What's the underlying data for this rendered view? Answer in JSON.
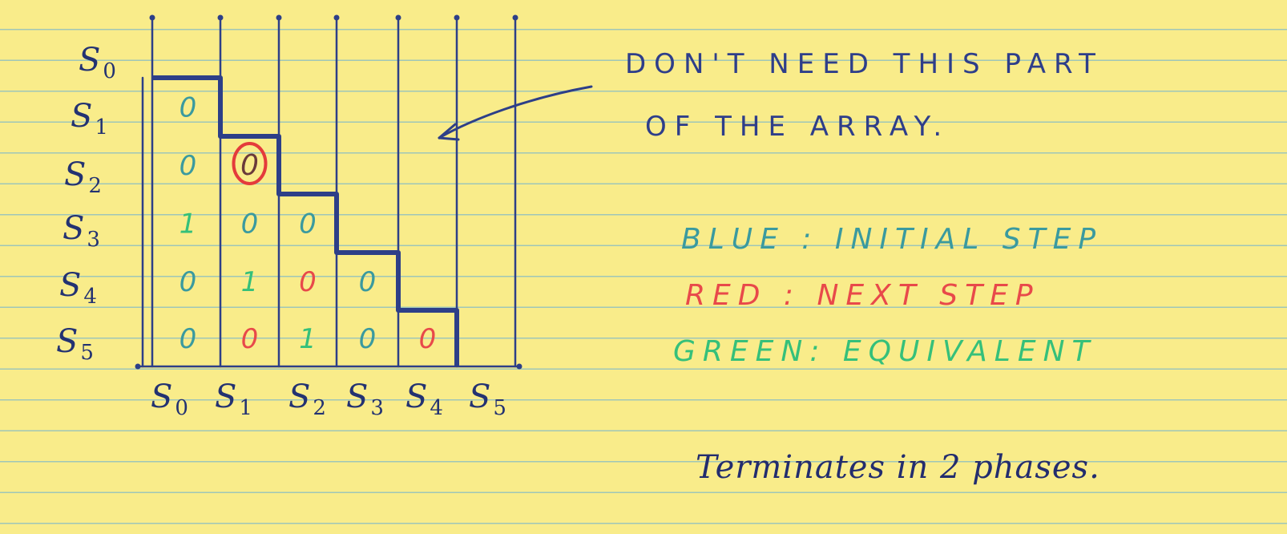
{
  "row_labels": [
    {
      "sym": "S",
      "sub": "0"
    },
    {
      "sym": "S",
      "sub": "1"
    },
    {
      "sym": "S",
      "sub": "2"
    },
    {
      "sym": "S",
      "sub": "3"
    },
    {
      "sym": "S",
      "sub": "4"
    },
    {
      "sym": "S",
      "sub": "5"
    }
  ],
  "col_labels": [
    {
      "sym": "S",
      "sub": "0"
    },
    {
      "sym": "S",
      "sub": "1"
    },
    {
      "sym": "S",
      "sub": "2"
    },
    {
      "sym": "S",
      "sub": "3"
    },
    {
      "sym": "S",
      "sub": "4"
    },
    {
      "sym": "S",
      "sub": "5"
    }
  ],
  "cells": [
    {
      "row": 1,
      "col": 0,
      "value": "0",
      "color": "blue"
    },
    {
      "row": 2,
      "col": 0,
      "value": "0",
      "color": "blue"
    },
    {
      "row": 2,
      "col": 1,
      "value": "0",
      "color": "red",
      "circled": true
    },
    {
      "row": 3,
      "col": 0,
      "value": "1",
      "color": "green"
    },
    {
      "row": 3,
      "col": 1,
      "value": "0",
      "color": "blue"
    },
    {
      "row": 3,
      "col": 2,
      "value": "0",
      "color": "blue"
    },
    {
      "row": 4,
      "col": 0,
      "value": "0",
      "color": "blue"
    },
    {
      "row": 4,
      "col": 1,
      "value": "1",
      "color": "green"
    },
    {
      "row": 4,
      "col": 2,
      "value": "0",
      "color": "red"
    },
    {
      "row": 4,
      "col": 3,
      "value": "0",
      "color": "blue"
    },
    {
      "row": 5,
      "col": 0,
      "value": "0",
      "color": "blue"
    },
    {
      "row": 5,
      "col": 1,
      "value": "0",
      "color": "red"
    },
    {
      "row": 5,
      "col": 2,
      "value": "1",
      "color": "green"
    },
    {
      "row": 5,
      "col": 3,
      "value": "0",
      "color": "blue"
    },
    {
      "row": 5,
      "col": 4,
      "value": "0",
      "color": "red"
    }
  ],
  "colors": {
    "paper": "#f9ec8a",
    "rule_line": "#9fc6b8",
    "grid_ink": "#2d3f88",
    "blue": "#3a9a9f",
    "red": "#e8494a",
    "green": "#35c07a",
    "circle": "#e43b3b"
  },
  "note": {
    "line1": "DON'T NEED THIS PART",
    "line2": "OF THE ARRAY."
  },
  "legend": [
    {
      "text": "BLUE : INITIAL STEP",
      "color": "blue"
    },
    {
      "text": "RED : NEXT STEP",
      "color": "red"
    },
    {
      "text": "GREEN: EQUIVALENT",
      "color": "green"
    }
  ],
  "footer": "Terminates in 2 phases."
}
